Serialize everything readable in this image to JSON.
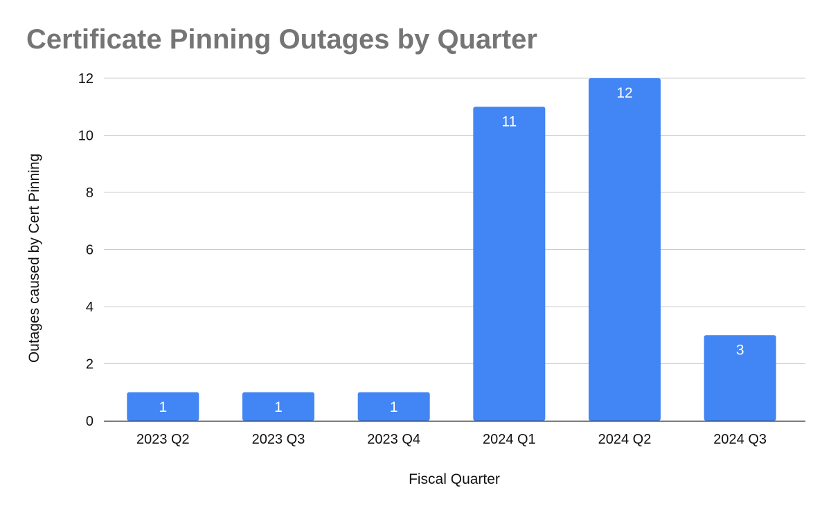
{
  "chart_data": {
    "type": "bar",
    "title": "Certificate Pinning Outages by Quarter",
    "xlabel": "Fiscal Quarter",
    "ylabel": "Outages caused by Cert Pinning",
    "categories": [
      "2023 Q2",
      "2023 Q3",
      "2023 Q4",
      "2024 Q1",
      "2024 Q2",
      "2024 Q3"
    ],
    "values": [
      1,
      1,
      1,
      11,
      12,
      3
    ],
    "data_labels": [
      "1",
      "1",
      "1",
      "11",
      "12",
      "3"
    ],
    "ylim": [
      0,
      12
    ],
    "yticks": [
      "0",
      "2",
      "4",
      "6",
      "8",
      "10",
      "12"
    ],
    "grid": true,
    "legend": "none",
    "colors": {
      "bar": "#4285f4",
      "title": "#757575",
      "grid": "#cccccc",
      "axis": "#333333",
      "data_label": "#ffffff"
    }
  }
}
